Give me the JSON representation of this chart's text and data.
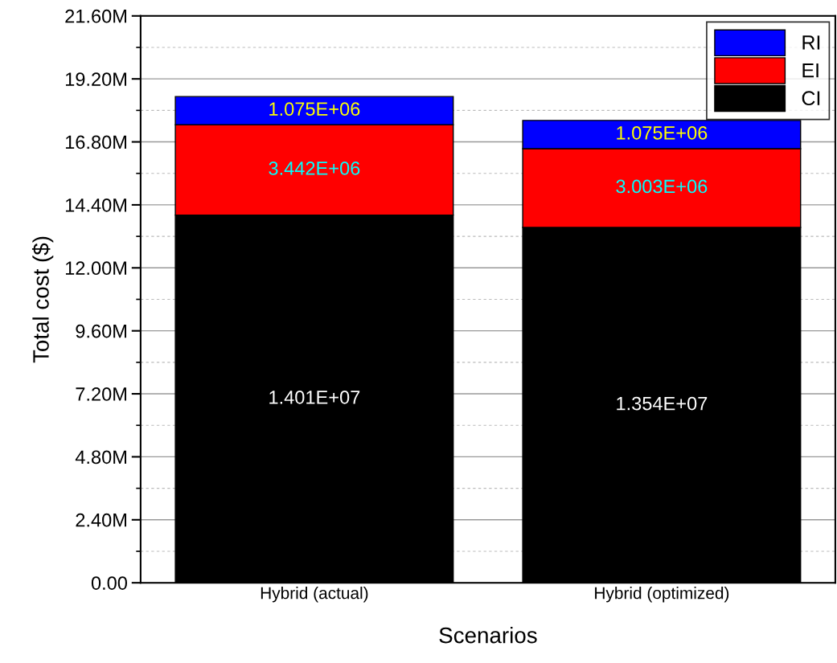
{
  "chart_data": {
    "type": "bar",
    "stacked": true,
    "xlabel": "Scenarios",
    "ylabel": "Total cost ($)",
    "categories": [
      "Hybrid (actual)",
      "Hybrid (optimized)"
    ],
    "series": [
      {
        "name": "CI",
        "color": "#000000",
        "values": [
          14010000,
          13540000
        ],
        "value_labels": [
          "1.401E+07",
          "1.354E+07"
        ]
      },
      {
        "name": "EI",
        "color": "#ff0000",
        "values": [
          3442000,
          3003000
        ],
        "value_labels": [
          "3.442E+06",
          "3.003E+06"
        ]
      },
      {
        "name": "RI",
        "color": "#0000ff",
        "values": [
          1075000,
          1075000
        ],
        "value_labels": [
          "1.075E+06",
          "1.075E+06"
        ]
      }
    ],
    "ylim": [
      0,
      21600000
    ],
    "yticks": [
      {
        "value": 0,
        "label": "0.00"
      },
      {
        "value": 2400000,
        "label": "2.40M"
      },
      {
        "value": 4800000,
        "label": "4.80M"
      },
      {
        "value": 7200000,
        "label": "7.20M"
      },
      {
        "value": 9600000,
        "label": "9.60M"
      },
      {
        "value": 12000000,
        "label": "12.00M"
      },
      {
        "value": 14400000,
        "label": "14.40M"
      },
      {
        "value": 16800000,
        "label": "16.80M"
      },
      {
        "value": 19200000,
        "label": "19.20M"
      },
      {
        "value": 21600000,
        "label": "21.60M"
      }
    ],
    "grid": "y",
    "legend": "top right"
  }
}
